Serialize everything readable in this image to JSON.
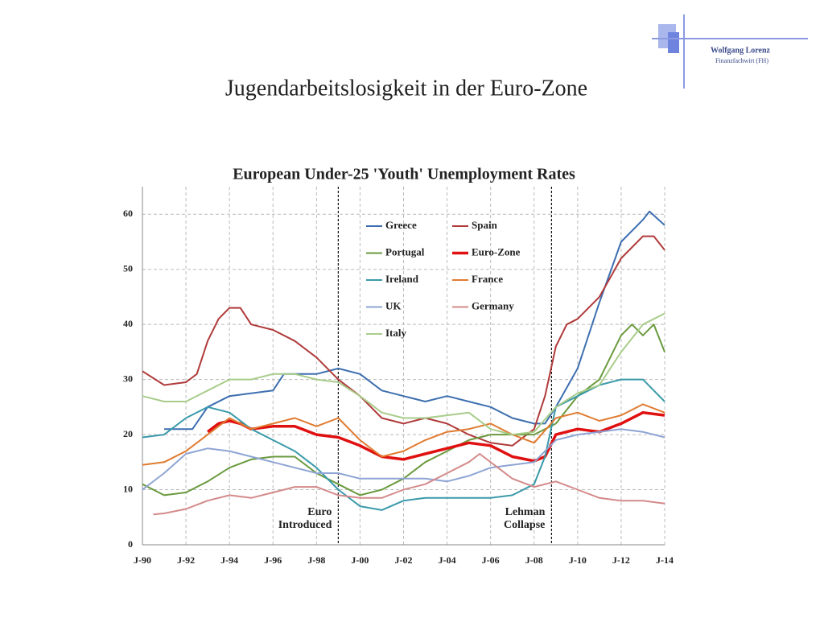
{
  "slide_title": "Jugendarbeitslosigkeit in der Euro-Zone",
  "logo": {
    "name": "Wolfgang Lorenz",
    "subtitle": "Finanzfachwirt (FH)"
  },
  "chart_data": {
    "type": "line",
    "title": "European Under-25 'Youth' Unemployment Rates",
    "xlim": [
      1990,
      2014
    ],
    "ylim": [
      0,
      65
    ],
    "xticks": [
      {
        "value": 1990,
        "label": "J-90"
      },
      {
        "value": 1992,
        "label": "J-92"
      },
      {
        "value": 1994,
        "label": "J-94"
      },
      {
        "value": 1996,
        "label": "J-96"
      },
      {
        "value": 1998,
        "label": "J-98"
      },
      {
        "value": 2000,
        "label": "J-00"
      },
      {
        "value": 2002,
        "label": "J-02"
      },
      {
        "value": 2004,
        "label": "J-04"
      },
      {
        "value": 2006,
        "label": "J-06"
      },
      {
        "value": 2008,
        "label": "J-08"
      },
      {
        "value": 2010,
        "label": "J-10"
      },
      {
        "value": 2012,
        "label": "J-12"
      },
      {
        "value": 2014,
        "label": "J-14"
      }
    ],
    "yticks": [
      0,
      10,
      20,
      30,
      40,
      50,
      60
    ],
    "grid": true,
    "legend": "upper-center",
    "series": [
      {
        "name": "Greece",
        "color": "#3d6fb0",
        "x": [
          1991,
          1992.3,
          1993,
          1994,
          1995,
          1996,
          1996.5,
          1998,
          1999,
          2000,
          2001,
          2002,
          2003,
          2004,
          2005,
          2006,
          2007,
          2008,
          2008.5,
          2009,
          2010,
          2011,
          2012,
          2013,
          2013.3,
          2014
        ],
        "values": [
          21,
          21,
          25,
          27,
          27.5,
          28,
          31,
          31,
          32,
          31,
          28,
          27,
          26,
          27,
          26,
          25,
          23,
          22,
          22,
          25,
          32,
          44,
          55,
          59,
          60.5,
          58
        ]
      },
      {
        "name": "Spain",
        "color": "#b03a3a",
        "x": [
          1990,
          1991,
          1992,
          1992.5,
          1993,
          1993.5,
          1994,
          1994.5,
          1995,
          1996,
          1997,
          1998,
          1999,
          2000,
          2001,
          2002,
          2003,
          2004,
          2005,
          2006,
          2007,
          2008,
          2008.5,
          2009,
          2009.5,
          2010,
          2011,
          2012,
          2013,
          2013.5,
          2014
        ],
        "values": [
          31.5,
          29,
          29.5,
          31,
          37,
          41,
          43,
          43,
          40,
          39,
          37,
          34,
          30,
          27,
          23,
          22,
          23,
          22,
          20,
          18.5,
          18,
          21,
          27,
          36,
          40,
          41,
          45,
          52,
          56,
          56,
          53.5
        ]
      },
      {
        "name": "Portugal",
        "color": "#6a9a3e",
        "x": [
          1990,
          1991,
          1992,
          1993,
          1994,
          1995,
          1996,
          1997,
          1998,
          1999,
          2000,
          2001,
          2002,
          2003,
          2004,
          2005,
          2006,
          2007,
          2008,
          2009,
          2010,
          2011,
          2012,
          2012.5,
          2013,
          2013.5,
          2014
        ],
        "values": [
          11,
          9,
          9.5,
          11.5,
          14,
          15.5,
          16,
          16,
          13,
          11,
          9,
          10,
          12,
          15,
          17,
          19,
          20,
          20,
          20,
          22,
          27,
          30,
          38,
          40,
          38,
          40,
          35
        ]
      },
      {
        "name": "Euro-Zone",
        "color": "#e01010",
        "x": [
          1993,
          1993.5,
          1994,
          1994.5,
          1995,
          1996,
          1997,
          1998,
          1999,
          2000,
          2001,
          2002,
          2003,
          2004,
          2005,
          2006,
          2007,
          2008,
          2008.5,
          2009,
          2010,
          2011,
          2012,
          2013,
          2014
        ],
        "values": [
          20.5,
          22,
          22.5,
          22,
          21,
          21.5,
          21.5,
          20,
          19.5,
          18,
          16,
          15.5,
          16.5,
          17.5,
          18.5,
          18,
          16,
          15.2,
          16,
          20,
          21,
          20.5,
          22,
          24,
          23.5
        ]
      },
      {
        "name": "Ireland",
        "color": "#3a9aaa",
        "x": [
          1990,
          1991,
          1992,
          1993,
          1994,
          1995,
          1996,
          1997,
          1998,
          1999,
          2000,
          2001,
          2002,
          2003,
          2004,
          2005,
          2006,
          2007,
          2008,
          2008.5,
          2009,
          2010,
          2011,
          2012,
          2013,
          2013.5,
          2014
        ],
        "values": [
          19.5,
          20,
          23,
          25,
          24,
          21,
          19,
          17,
          14,
          10,
          7,
          6.3,
          8,
          8.5,
          8.5,
          8.5,
          8.5,
          9,
          11,
          16,
          25,
          27,
          29,
          30,
          30,
          28,
          26
        ]
      },
      {
        "name": "France",
        "color": "#e07b30",
        "x": [
          1990,
          1991,
          1992,
          1993,
          1994,
          1995,
          1996,
          1997,
          1998,
          1999,
          2000,
          2001,
          2002,
          2003,
          2004,
          2005,
          2006,
          2007,
          2008,
          2009,
          2010,
          2011,
          2012,
          2013,
          2014
        ],
        "values": [
          14.5,
          15,
          17,
          20,
          23,
          21,
          22,
          23,
          21.5,
          23,
          19,
          16,
          17,
          19,
          20.5,
          21,
          22,
          20,
          18.5,
          23,
          24,
          22.5,
          23.5,
          25.5,
          24
        ]
      },
      {
        "name": "UK",
        "color": "#8ea4d4",
        "x": [
          1990,
          1991,
          1992,
          1993,
          1994,
          1995,
          1996,
          1997,
          1998,
          1999,
          2000,
          2001,
          2002,
          2003,
          2004,
          2005,
          2006,
          2007,
          2008,
          2009,
          2010,
          2011,
          2012,
          2013,
          2014
        ],
        "values": [
          10,
          13,
          16.5,
          17.5,
          17,
          16,
          15,
          14,
          13,
          13,
          12,
          12,
          12,
          12,
          11.5,
          12.5,
          14,
          14.5,
          15,
          19,
          20,
          20.5,
          21,
          20.5,
          19.5
        ]
      },
      {
        "name": "Germany",
        "color": "#d48a8a",
        "x": [
          1990.5,
          1991,
          1992,
          1993,
          1994,
          1995,
          1996,
          1997,
          1998,
          1999,
          2000,
          2001,
          2002,
          2003,
          2004,
          2005,
          2005.5,
          2006,
          2007,
          2008,
          2009,
          2010,
          2011,
          2012,
          2013,
          2014
        ],
        "values": [
          5.5,
          5.7,
          6.5,
          8,
          9,
          8.5,
          9.5,
          10.5,
          10.5,
          9,
          8.5,
          8.5,
          10,
          11,
          13,
          15,
          16.5,
          15,
          12,
          10.5,
          11.5,
          10,
          8.5,
          8,
          8,
          7.5
        ]
      },
      {
        "name": "Italy",
        "color": "#a8cc8a",
        "x": [
          1990,
          1991,
          1992,
          1993,
          1994,
          1995,
          1996,
          1997,
          1998,
          1999,
          2000,
          2001,
          2002,
          2003,
          2004,
          2005,
          2006,
          2007,
          2008,
          2009,
          2010,
          2011,
          2012,
          2013,
          2014
        ],
        "values": [
          27,
          26,
          26,
          28,
          30,
          30,
          31,
          31,
          30,
          29.5,
          27,
          24,
          23,
          23,
          23.5,
          24,
          21,
          20,
          20.5,
          25,
          27.5,
          29,
          35,
          40,
          42
        ]
      }
    ],
    "annotations": [
      {
        "lines": [
          "Euro",
          "Introduced"
        ],
        "x": 1999
      },
      {
        "lines": [
          "Lehman",
          "Collapse"
        ],
        "x": 2008.8
      }
    ]
  }
}
